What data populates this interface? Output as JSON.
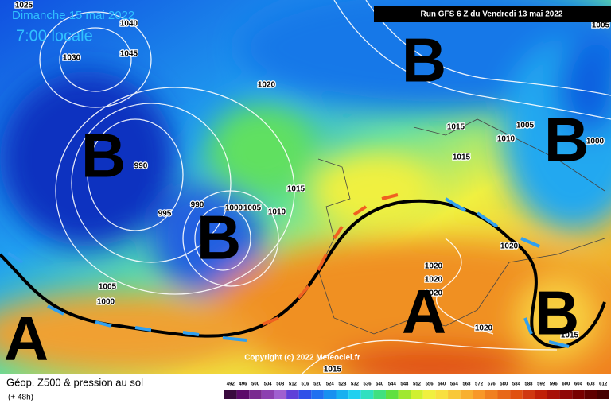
{
  "header": {
    "date": "Dimanche 15 mai 2022",
    "time": "7:00 locale",
    "run": "Run GFS 6 Z du Vendredi 13 mai 2022"
  },
  "pressure_labels": [
    "1025",
    "1040",
    "1045",
    "1030",
    "1020",
    "990",
    "995",
    "990",
    "1000",
    "1005",
    "1010",
    "1015",
    "1015",
    "1015",
    "1005",
    "1010",
    "1000",
    "1005",
    "1005",
    "1000",
    "1020",
    "1020",
    "1020",
    "1020",
    "1015",
    "1015",
    "1020"
  ],
  "centers": [
    "B",
    "B",
    "B",
    "B",
    "A",
    "A",
    "B"
  ],
  "copyright": "Copyright (c) 2022 Meteociel.fr",
  "footer": {
    "title": "Géop. Z500 & pression au sol",
    "subtitle": "(+ 48h)"
  },
  "legend": {
    "values": [
      "492",
      "496",
      "500",
      "504",
      "508",
      "512",
      "516",
      "520",
      "524",
      "528",
      "532",
      "536",
      "540",
      "544",
      "548",
      "552",
      "556",
      "560",
      "564",
      "568",
      "572",
      "576",
      "580",
      "584",
      "588",
      "592",
      "596",
      "600",
      "604",
      "608",
      "612"
    ],
    "colors": [
      "#3a0a3e",
      "#5c0a6a",
      "#7a2a90",
      "#8c40b0",
      "#a060d0",
      "#6040d8",
      "#3050e8",
      "#2070f0",
      "#1890f0",
      "#18b0f0",
      "#20d0f0",
      "#30e0c0",
      "#40e080",
      "#60e040",
      "#a0e830",
      "#d0f030",
      "#f0f040",
      "#f8e040",
      "#f8c838",
      "#f8b030",
      "#f89828",
      "#f08020",
      "#e86818",
      "#e05010",
      "#d03810",
      "#c02008",
      "#a81008",
      "#900808",
      "#780000",
      "#600000",
      "#480000"
    ]
  }
}
